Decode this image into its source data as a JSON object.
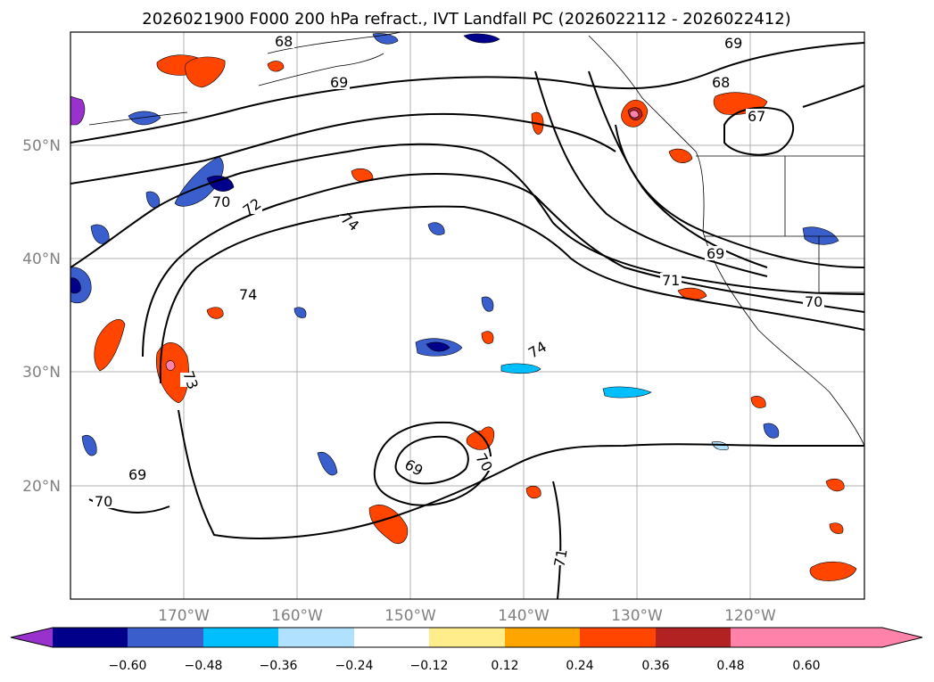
{
  "title": "2026021900 F000 200 hPa refract., IVT Landfall PC (2026022112 - 2026022412)",
  "map": {
    "lat_labels": [
      "50°N",
      "40°N",
      "30°N",
      "20°N"
    ],
    "lon_labels": [
      "170°W",
      "160°W",
      "150°W",
      "140°W",
      "130°W",
      "120°W"
    ],
    "contour_labels": [
      "68",
      "69",
      "69",
      "68",
      "67",
      "70",
      "72",
      "74",
      "74",
      "69",
      "71",
      "70",
      "74",
      "73",
      "69",
      "69",
      "70",
      "70",
      "71"
    ]
  },
  "colorbar": {
    "colors": [
      "#9932cc",
      "#00008b",
      "#3a5fcd",
      "#00bfff",
      "#b0e2ff",
      "#ffffff",
      "#ffec8b",
      "#ffa500",
      "#ff4500",
      "#b22222",
      "#ff82ab"
    ],
    "tick_labels": [
      "−0.60",
      "−0.48",
      "−0.36",
      "−0.24",
      "−0.12",
      "0.12",
      "0.24",
      "0.36",
      "0.48",
      "0.60"
    ]
  }
}
